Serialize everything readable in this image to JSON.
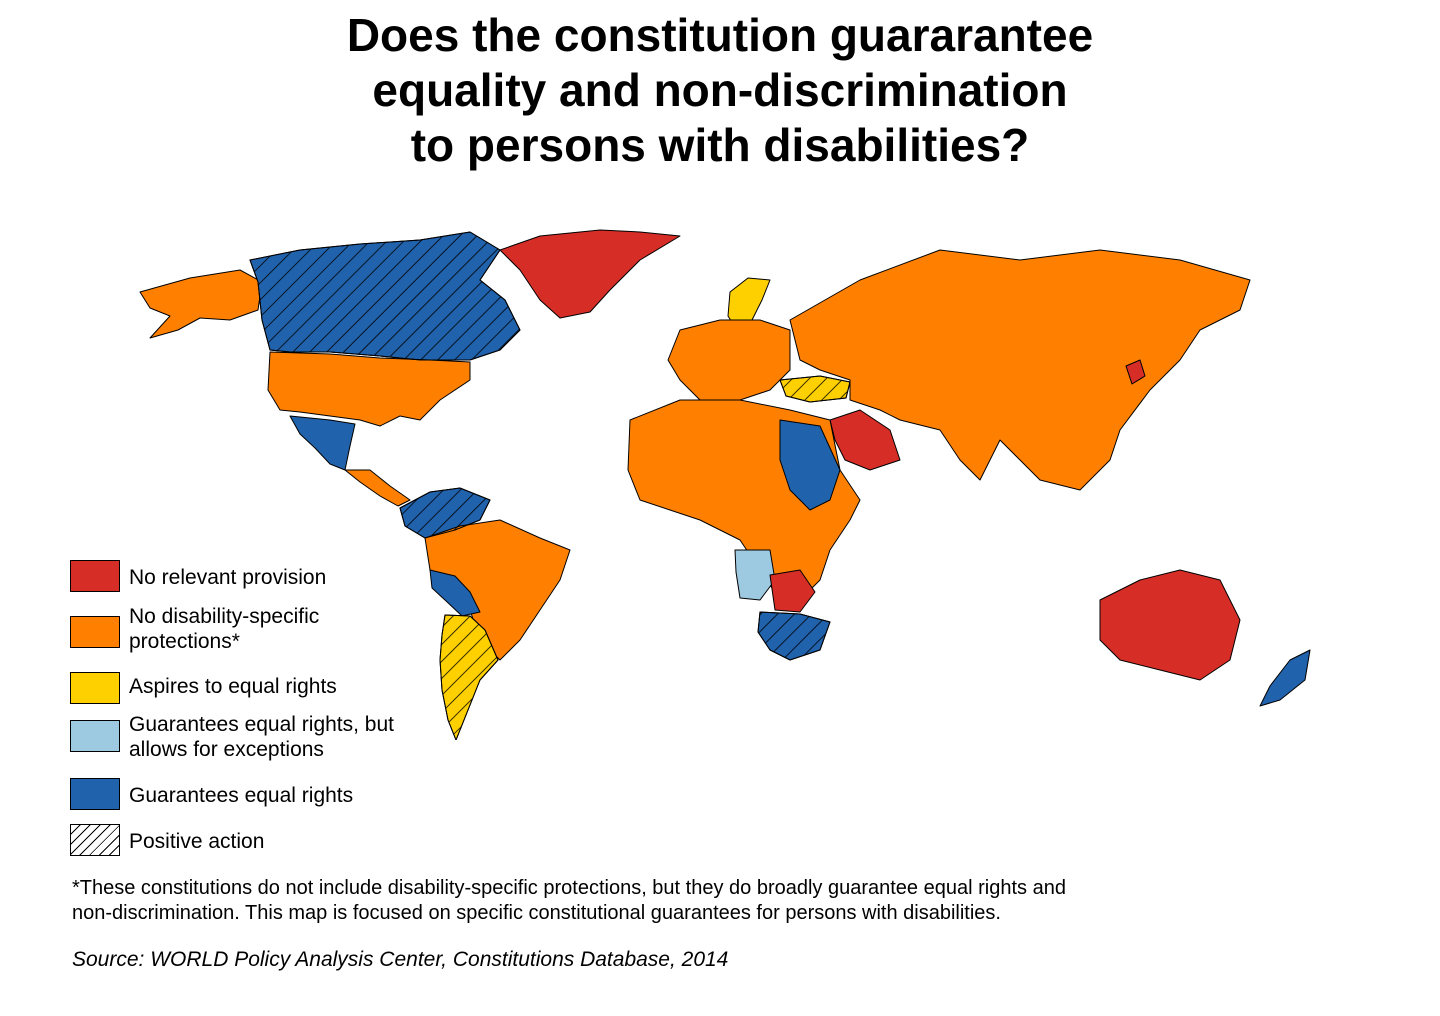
{
  "title": {
    "line1": "Does the constitution guararantee",
    "line2": "equality and non-discrimination",
    "line3": "to persons with disabilities?"
  },
  "colors": {
    "no_provision": "#d62e26",
    "no_specific": "#ff8000",
    "aspires": "#ffd000",
    "exceptions": "#9ecae1",
    "guarantees": "#2162ac",
    "border": "#000000"
  },
  "legend": [
    {
      "key": "no_provision",
      "line1": "No relevant provision",
      "line2": ""
    },
    {
      "key": "no_specific",
      "line1": "No disability-specific",
      "line2": "protections*"
    },
    {
      "key": "aspires",
      "line1": "Aspires to equal rights",
      "line2": ""
    },
    {
      "key": "exceptions",
      "line1": "Guarantees equal rights, but",
      "line2": "allows for exceptions"
    },
    {
      "key": "guarantees",
      "line1": "Guarantees equal rights",
      "line2": ""
    },
    {
      "key": "positive_action",
      "line1": "Positive action",
      "line2": ""
    }
  ],
  "footnote": {
    "line1": "*These constitutions do not include disability-specific protections, but they do broadly guarantee equal rights and",
    "line2": "non-discrimination. This map is focused on specific constitutional guarantees for persons with disabilities."
  },
  "source": "Source: WORLD Policy Analysis Center, Constitutions Database, 2014",
  "map_regions": [
    {
      "region": "alaska",
      "category": "no_specific",
      "hatch": false
    },
    {
      "region": "canada",
      "category": "guarantees",
      "hatch": true
    },
    {
      "region": "greenland",
      "category": "no_provision",
      "hatch": false
    },
    {
      "region": "usa",
      "category": "no_specific",
      "hatch": false
    },
    {
      "region": "mexico",
      "category": "guarantees",
      "hatch": false
    },
    {
      "region": "central-america",
      "category": "no_specific",
      "hatch": false
    },
    {
      "region": "colombia-venezuela",
      "category": "guarantees",
      "hatch": true
    },
    {
      "region": "brazil",
      "category": "no_specific",
      "hatch": false
    },
    {
      "region": "bolivia-paraguay",
      "category": "guarantees",
      "hatch": false
    },
    {
      "region": "argentina",
      "category": "aspires",
      "hatch": true
    },
    {
      "region": "scandinavia",
      "category": "aspires",
      "hatch": false
    },
    {
      "region": "europe",
      "category": "no_specific",
      "hatch": false
    },
    {
      "region": "turkey",
      "category": "aspires",
      "hatch": true
    },
    {
      "region": "russia-asia",
      "category": "no_specific",
      "hatch": false
    },
    {
      "region": "saudi-arabia",
      "category": "no_provision",
      "hatch": false
    },
    {
      "region": "africa-north",
      "category": "no_specific",
      "hatch": false
    },
    {
      "region": "egypt-sudan",
      "category": "guarantees",
      "hatch": false
    },
    {
      "region": "angola",
      "category": "exceptions",
      "hatch": false
    },
    {
      "region": "zambia-zimbabwe",
      "category": "no_provision",
      "hatch": false
    },
    {
      "region": "south-africa",
      "category": "guarantees",
      "hatch": true
    },
    {
      "region": "australia",
      "category": "no_provision",
      "hatch": false
    },
    {
      "region": "new-zealand",
      "category": "guarantees",
      "hatch": false
    },
    {
      "region": "north-korea",
      "category": "no_provision",
      "hatch": false
    }
  ]
}
